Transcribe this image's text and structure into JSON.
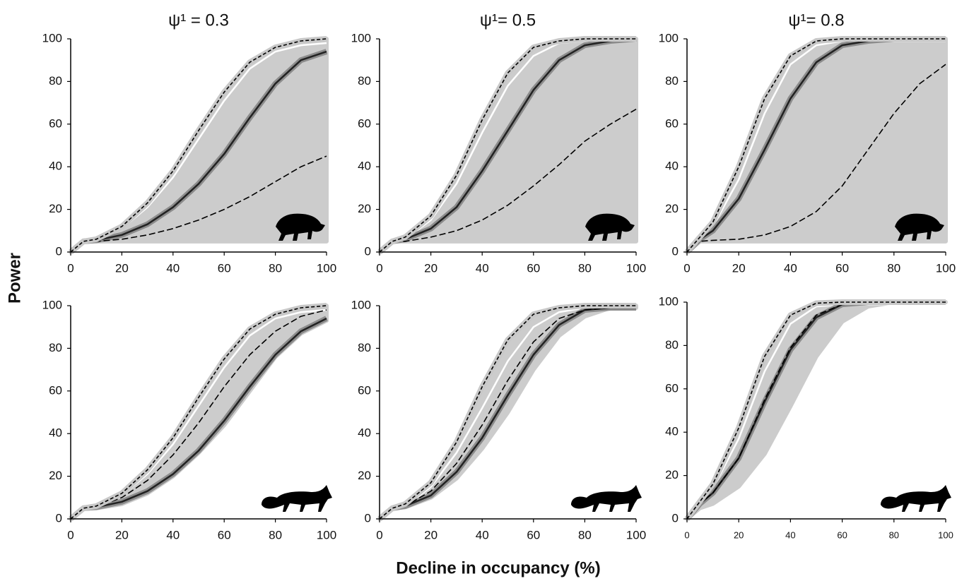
{
  "xlabel": "Decline in occupancy (%)",
  "ylabel": "Power",
  "chart_data": [
    {
      "type": "line",
      "title": "ψ¹ = 0.3",
      "x": [
        0,
        5,
        10,
        20,
        30,
        40,
        50,
        60,
        70,
        80,
        90,
        100
      ],
      "xlim": [
        0,
        100
      ],
      "xticks": [
        0,
        20,
        40,
        60,
        80,
        100
      ],
      "ylim": [
        0,
        100
      ],
      "yticks": [
        0,
        20,
        40,
        60,
        80,
        100
      ],
      "series": [
        {
          "color": "#cccccc",
          "values": [
            0,
            5,
            6,
            12,
            23,
            38,
            57,
            75,
            89,
            96,
            99,
            100
          ],
          "lower": [
            0,
            5,
            5,
            5,
            5,
            5,
            5,
            5,
            5,
            5,
            5,
            5
          ]
        },
        {
          "color": "#ffffff",
          "values": [
            0,
            5,
            6,
            11,
            21,
            35,
            53,
            71,
            86,
            94,
            97,
            98
          ]
        },
        {
          "color": "#222222",
          "halo": "#8c8c8c",
          "values": [
            0,
            5,
            5.5,
            8,
            13,
            21,
            32,
            46,
            63,
            79,
            90,
            94
          ]
        },
        {
          "color": "#000000",
          "dash": "long",
          "values": [
            0,
            5,
            5,
            6,
            8,
            11,
            15,
            20,
            26,
            33,
            40,
            45
          ]
        },
        {
          "color": "#000000",
          "dash": "short",
          "halo": "#c8c8c8",
          "values": [
            0,
            5,
            6,
            12,
            23,
            38,
            57,
            75,
            89,
            96,
            99,
            100
          ]
        }
      ]
    },
    {
      "type": "line",
      "title": "ψ¹= 0.5",
      "x": [
        0,
        5,
        10,
        20,
        30,
        40,
        50,
        60,
        70,
        80,
        90,
        100
      ],
      "xlim": [
        0,
        100
      ],
      "xticks": [
        0,
        20,
        40,
        60,
        80,
        100
      ],
      "ylim": [
        0,
        100
      ],
      "yticks": [
        0,
        20,
        40,
        60,
        80,
        100
      ],
      "series": [
        {
          "color": "#cccccc",
          "values": [
            0,
            5,
            7,
            17,
            36,
            62,
            84,
            96,
            99,
            100,
            100,
            100
          ],
          "lower": [
            0,
            5,
            5,
            5,
            5,
            5,
            5,
            5,
            5,
            5,
            5,
            5
          ]
        },
        {
          "color": "#ffffff",
          "values": [
            0,
            5,
            6,
            15,
            32,
            56,
            78,
            92,
            98,
            99,
            99,
            99
          ]
        },
        {
          "color": "#222222",
          "halo": "#8c8c8c",
          "values": [
            0,
            5,
            6,
            11,
            21,
            38,
            57,
            76,
            90,
            97,
            99,
            100
          ]
        },
        {
          "color": "#000000",
          "dash": "long",
          "values": [
            0,
            5,
            5,
            7,
            10,
            15,
            22,
            31,
            41,
            52,
            60,
            67
          ]
        },
        {
          "color": "#000000",
          "dash": "short",
          "halo": "#c8c8c8",
          "values": [
            0,
            5,
            7,
            17,
            36,
            62,
            84,
            96,
            99,
            100,
            100,
            100
          ]
        }
      ]
    },
    {
      "type": "line",
      "title": "ψ¹= 0.8",
      "x": [
        0,
        5,
        10,
        20,
        30,
        40,
        50,
        60,
        70,
        80,
        90,
        100
      ],
      "xlim": [
        0,
        100
      ],
      "xticks": [
        0,
        20,
        40,
        60,
        80,
        100
      ],
      "ylim": [
        0,
        100
      ],
      "yticks": [
        0,
        20,
        40,
        60,
        80,
        100
      ],
      "series": [
        {
          "color": "#cccccc",
          "values": [
            0,
            7,
            14,
            40,
            72,
            92,
            99,
            100,
            100,
            100,
            100,
            100
          ],
          "lower": [
            0,
            5,
            5,
            5,
            5,
            5,
            5,
            5,
            5,
            5,
            5,
            5
          ]
        },
        {
          "color": "#ffffff",
          "values": [
            0,
            6,
            12,
            34,
            65,
            88,
            97,
            99,
            99,
            99,
            99,
            99
          ]
        },
        {
          "color": "#222222",
          "halo": "#8c8c8c",
          "values": [
            0,
            6,
            10,
            25,
            48,
            72,
            89,
            97,
            99,
            100,
            100,
            100
          ]
        },
        {
          "color": "#000000",
          "dash": "long",
          "values": [
            0,
            5,
            5.5,
            6,
            8,
            12,
            19,
            31,
            48,
            65,
            79,
            88
          ]
        },
        {
          "color": "#000000",
          "dash": "short",
          "halo": "#c8c8c8",
          "values": [
            0,
            7,
            14,
            40,
            72,
            92,
            99,
            100,
            100,
            100,
            100,
            100
          ]
        }
      ]
    },
    {
      "type": "line",
      "x": [
        0,
        5,
        10,
        20,
        30,
        40,
        50,
        60,
        70,
        80,
        90,
        100
      ],
      "xlim": [
        0,
        100
      ],
      "xticks": [
        0,
        20,
        40,
        60,
        80,
        100
      ],
      "ylim": [
        0,
        100
      ],
      "yticks": [
        0,
        20,
        40,
        60,
        80,
        100
      ],
      "series": [
        {
          "color": "#cccccc",
          "values": [
            0,
            5,
            6,
            12,
            23,
            38,
            57,
            75,
            89,
            96,
            99,
            100
          ],
          "lower": [
            0,
            5,
            5,
            7,
            12,
            20,
            31,
            44,
            60,
            76,
            87,
            93
          ]
        },
        {
          "color": "#ffffff",
          "values": [
            0,
            5,
            6,
            11,
            21,
            35,
            53,
            71,
            86,
            94,
            97,
            98
          ]
        },
        {
          "color": "#222222",
          "halo": "#8c8c8c",
          "values": [
            0,
            5,
            5.5,
            8,
            13,
            21,
            32,
            46,
            62,
            77,
            88,
            94
          ]
        },
        {
          "color": "#000000",
          "dash": "long",
          "values": [
            0,
            5,
            5.5,
            10,
            18,
            30,
            45,
            62,
            77,
            88,
            95,
            98
          ]
        },
        {
          "color": "#000000",
          "dash": "short",
          "halo": "#c8c8c8",
          "values": [
            0,
            5,
            6,
            12,
            23,
            38,
            57,
            75,
            89,
            96,
            99,
            100
          ]
        }
      ]
    },
    {
      "type": "line",
      "x": [
        0,
        5,
        10,
        20,
        30,
        40,
        50,
        60,
        70,
        80,
        90,
        100
      ],
      "xlim": [
        0,
        100
      ],
      "xticks": [
        0,
        20,
        40,
        60,
        80,
        100
      ],
      "ylim": [
        0,
        100
      ],
      "yticks": [
        0,
        20,
        40,
        60,
        80,
        100
      ],
      "series": [
        {
          "color": "#cccccc",
          "values": [
            0,
            5,
            7,
            17,
            36,
            62,
            84,
            96,
            99,
            100,
            100,
            100
          ],
          "lower": [
            0,
            5,
            5.5,
            10,
            19,
            33,
            50,
            70,
            86,
            95,
            99,
            99
          ]
        },
        {
          "color": "#ffffff",
          "values": [
            0,
            5,
            6,
            15,
            31,
            52,
            74,
            90,
            97,
            99,
            99,
            99
          ]
        },
        {
          "color": "#222222",
          "halo": "#8c8c8c",
          "values": [
            0,
            5,
            6,
            11,
            22,
            38,
            58,
            77,
            91,
            98,
            99,
            99
          ]
        },
        {
          "color": "#000000",
          "dash": "long",
          "values": [
            0,
            5,
            6,
            13,
            26,
            44,
            65,
            83,
            94,
            98,
            99,
            99
          ]
        },
        {
          "color": "#000000",
          "dash": "short",
          "halo": "#c8c8c8",
          "values": [
            0,
            5,
            7,
            17,
            36,
            62,
            84,
            96,
            99,
            100,
            100,
            100
          ]
        }
      ]
    },
    {
      "type": "line",
      "x": [
        0,
        5,
        10,
        20,
        30,
        40,
        50,
        60,
        70,
        80,
        90,
        100
      ],
      "xlim": [
        0,
        100
      ],
      "xticks": [
        0,
        20,
        40,
        60,
        80,
        100
      ],
      "ylim": [
        0,
        100
      ],
      "yticks": [
        0,
        20,
        40,
        60,
        80,
        100
      ],
      "series": [
        {
          "color": "#cccccc",
          "values": [
            0,
            8,
            16,
            42,
            75,
            94,
            99.5,
            100,
            100,
            100,
            100,
            100
          ],
          "lower": [
            0,
            5,
            7,
            15,
            30,
            52,
            75,
            91,
            98,
            100,
            100,
            100
          ]
        },
        {
          "color": "#ffffff",
          "values": [
            0,
            7,
            14,
            37,
            68,
            90,
            98,
            99,
            99,
            99,
            99,
            99
          ]
        },
        {
          "color": "#222222",
          "halo": "#8c8c8c",
          "values": [
            0,
            7,
            12,
            28,
            54,
            78,
            93,
            99,
            100,
            100,
            100,
            100
          ]
        },
        {
          "color": "#000000",
          "dash": "long",
          "values": [
            0,
            7,
            12,
            28,
            55,
            79,
            94,
            99,
            100,
            100,
            100,
            100
          ]
        },
        {
          "color": "#000000",
          "dash": "short",
          "halo": "#c8c8c8",
          "values": [
            0,
            8,
            16,
            42,
            75,
            94,
            99.5,
            100,
            100,
            100,
            100,
            100
          ]
        }
      ]
    }
  ]
}
